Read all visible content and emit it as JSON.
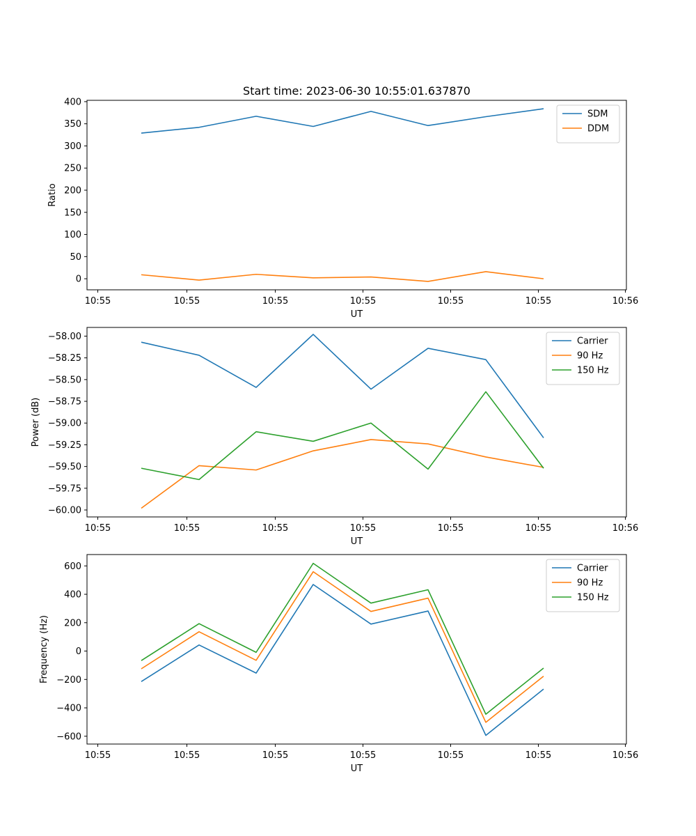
{
  "figure": {
    "title": "Start time: 2023-06-30 10:55:01.637870"
  },
  "colors": {
    "blue": "#1f77b4",
    "orange": "#ff7f0e",
    "green": "#2ca02c"
  },
  "chart_data": [
    {
      "type": "line",
      "title": "Start time: 2023-06-30 10:55:01.637870",
      "xlabel": "UT",
      "ylabel": "Ratio",
      "xtick_labels": [
        "10:55",
        "10:55",
        "10:55",
        "10:55",
        "10:55",
        "10:55",
        "10:55",
        "10:56"
      ],
      "yticks": [
        0,
        50,
        100,
        150,
        200,
        250,
        300,
        350,
        400
      ],
      "ylim": [
        -25,
        403
      ],
      "legend": "top-right",
      "series": [
        {
          "name": "SDM",
          "color": "#1f77b4",
          "values": [
            329,
            342,
            367,
            344,
            378,
            346,
            366,
            384
          ]
        },
        {
          "name": "DDM",
          "color": "#ff7f0e",
          "values": [
            9,
            -3,
            10,
            2,
            4,
            -6,
            16,
            0
          ]
        }
      ]
    },
    {
      "type": "line",
      "xlabel": "UT",
      "ylabel": "Power (dB)",
      "xtick_labels": [
        "10:55",
        "10:55",
        "10:55",
        "10:55",
        "10:55",
        "10:55",
        "10:55",
        "10:56"
      ],
      "yticks": [
        -60.0,
        -59.75,
        -59.5,
        -59.25,
        -59.0,
        -58.75,
        -58.5,
        -58.25,
        -58.0
      ],
      "ytick_labels": [
        "−60.00",
        "−59.75",
        "−59.50",
        "−59.25",
        "−59.00",
        "−58.75",
        "−58.50",
        "−58.25",
        "−58.00"
      ],
      "ylim": [
        -60.08,
        -57.9
      ],
      "legend": "top-right",
      "series": [
        {
          "name": "Carrier",
          "color": "#1f77b4",
          "values": [
            -58.07,
            -58.22,
            -58.59,
            -57.98,
            -58.61,
            -58.14,
            -58.27,
            -59.17
          ]
        },
        {
          "name": "90 Hz",
          "color": "#ff7f0e",
          "values": [
            -59.98,
            -59.49,
            -59.54,
            -59.32,
            -59.19,
            -59.24,
            -59.39,
            -59.51
          ]
        },
        {
          "name": "150 Hz",
          "color": "#2ca02c",
          "values": [
            -59.52,
            -59.65,
            -59.1,
            -59.21,
            -59.0,
            -59.53,
            -58.64,
            -59.52
          ]
        }
      ]
    },
    {
      "type": "line",
      "xlabel": "UT",
      "ylabel": "Frequency (Hz)",
      "xtick_labels": [
        "10:55",
        "10:55",
        "10:55",
        "10:55",
        "10:55",
        "10:55",
        "10:55",
        "10:56"
      ],
      "yticks": [
        -600,
        -400,
        -200,
        0,
        200,
        400,
        600
      ],
      "ytick_labels": [
        "−600",
        "−400",
        "−200",
        "0",
        "200",
        "400",
        "600"
      ],
      "ylim": [
        -655,
        680
      ],
      "legend": "top-right",
      "series": [
        {
          "name": "Carrier",
          "color": "#1f77b4",
          "values": [
            -215,
            43,
            -155,
            469,
            190,
            282,
            -594,
            -268
          ]
        },
        {
          "name": "90 Hz",
          "color": "#ff7f0e",
          "values": [
            -125,
            136,
            -65,
            559,
            279,
            373,
            -502,
            -177
          ]
        },
        {
          "name": "150 Hz",
          "color": "#2ca02c",
          "values": [
            -67,
            193,
            -9,
            618,
            338,
            432,
            -445,
            -120
          ]
        }
      ]
    }
  ]
}
